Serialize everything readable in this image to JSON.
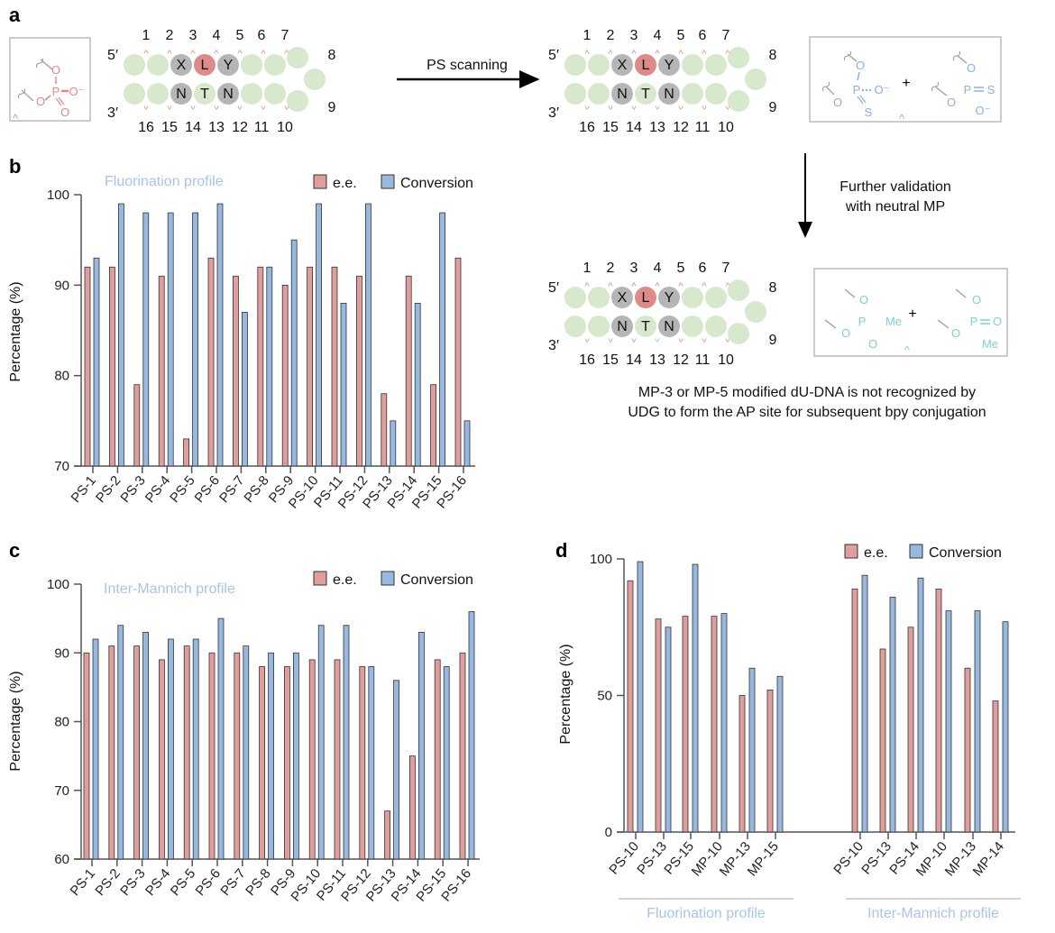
{
  "panels": {
    "a": "a",
    "b": "b",
    "c": "c",
    "d": "d"
  },
  "colors": {
    "ee": "#e09d9b",
    "conversion": "#97b9e0",
    "pink": "#e08a88",
    "blue": "#8ab0e0",
    "teal": "#7fcfcf",
    "green": "#d7e8cc",
    "gray": "#b5b5b5",
    "red": "#dc8b89",
    "title": "#a9c4e8"
  },
  "diagram": {
    "five_prime": "5′",
    "three_prime": "3′",
    "top_numbers": [
      "1",
      "2",
      "3",
      "4",
      "5",
      "6",
      "7"
    ],
    "loop_numbers": [
      "8",
      "9"
    ],
    "bottom_numbers": [
      "16",
      "15",
      "14",
      "13",
      "12",
      "11",
      "10"
    ],
    "top_letters": [
      "X",
      "L",
      "Y"
    ],
    "bottom_letters": [
      "N",
      "T",
      "N"
    ]
  },
  "arrow1_label": "PS scanning",
  "arrow2_label": [
    "Further validation",
    "with neutral MP"
  ],
  "chem": {
    "o": "O",
    "p": "P",
    "o_minus": "O⁻",
    "s": "S",
    "me": "Me",
    "plus": "+",
    "caret": "^"
  },
  "caption": [
    "MP-3 or MP-5 modified dU-DNA is not recognized by",
    "UDG to form the AP site for subsequent bpy conjugation"
  ],
  "chart_data": [
    {
      "id": "b",
      "type": "bar",
      "title": "Fluorination profile",
      "ylabel": "Percentage (%)",
      "xlabel": "",
      "ylim": [
        70,
        100
      ],
      "yticks": [
        "70",
        "80",
        "90",
        "100"
      ],
      "legend": {
        "position": "top-right",
        "entries": [
          "e.e.",
          "Conversion"
        ]
      },
      "categories": [
        "PS-1",
        "PS-2",
        "PS-3",
        "PS-4",
        "PS-5",
        "PS-6",
        "PS-7",
        "PS-8",
        "PS-9",
        "PS-10",
        "PS-11",
        "PS-12",
        "PS-13",
        "PS-14",
        "PS-15",
        "PS-16"
      ],
      "series": [
        {
          "name": "e.e.",
          "values": [
            92,
            92,
            79,
            91,
            73,
            93,
            91,
            92,
            90,
            92,
            92,
            91,
            78,
            91,
            79,
            93
          ]
        },
        {
          "name": "Conversion",
          "values": [
            93,
            99,
            98,
            98,
            98,
            99,
            87,
            92,
            95,
            99,
            88,
            99,
            75,
            88,
            98,
            75
          ]
        }
      ]
    },
    {
      "id": "c",
      "type": "bar",
      "title": "Inter-Mannich profile",
      "ylabel": "Percentage (%)",
      "xlabel": "",
      "ylim": [
        60,
        100
      ],
      "yticks": [
        "60",
        "70",
        "80",
        "90",
        "100"
      ],
      "legend": {
        "position": "top-right",
        "entries": [
          "e.e.",
          "Conversion"
        ]
      },
      "categories": [
        "PS-1",
        "PS-2",
        "PS-3",
        "PS-4",
        "PS-5",
        "PS-6",
        "PS-7",
        "PS-8",
        "PS-9",
        "PS-10",
        "PS-11",
        "PS-12",
        "PS-13",
        "PS-14",
        "PS-15",
        "PS-16"
      ],
      "series": [
        {
          "name": "e.e.",
          "values": [
            90,
            91,
            91,
            89,
            91,
            90,
            90,
            88,
            88,
            89,
            89,
            88,
            67,
            75,
            89,
            90
          ]
        },
        {
          "name": "Conversion",
          "values": [
            92,
            94,
            93,
            92,
            92,
            95,
            91,
            90,
            90,
            94,
            94,
            88,
            86,
            93,
            88,
            96
          ]
        }
      ]
    },
    {
      "id": "d",
      "type": "bar",
      "title": "",
      "ylabel": "Percentage (%)",
      "xlabel": "",
      "ylim": [
        0,
        100
      ],
      "yticks": [
        "0",
        "50",
        "100"
      ],
      "legend": {
        "position": "top-right",
        "entries": [
          "e.e.",
          "Conversion"
        ]
      },
      "groups": [
        "Fluorination profile",
        "Inter-Mannich profile"
      ],
      "categories": [
        "PS-10",
        "PS-13",
        "PS-15",
        "MP-10",
        "MP-13",
        "MP-15",
        "PS-10",
        "PS-13",
        "PS-14",
        "MP-10",
        "MP-13",
        "MP-14"
      ],
      "series": [
        {
          "name": "e.e.",
          "values": [
            92,
            78,
            79,
            79,
            50,
            52,
            89,
            67,
            75,
            89,
            60,
            48
          ]
        },
        {
          "name": "Conversion",
          "values": [
            99,
            75,
            98,
            80,
            60,
            57,
            94,
            86,
            93,
            81,
            81,
            77
          ]
        }
      ]
    }
  ]
}
